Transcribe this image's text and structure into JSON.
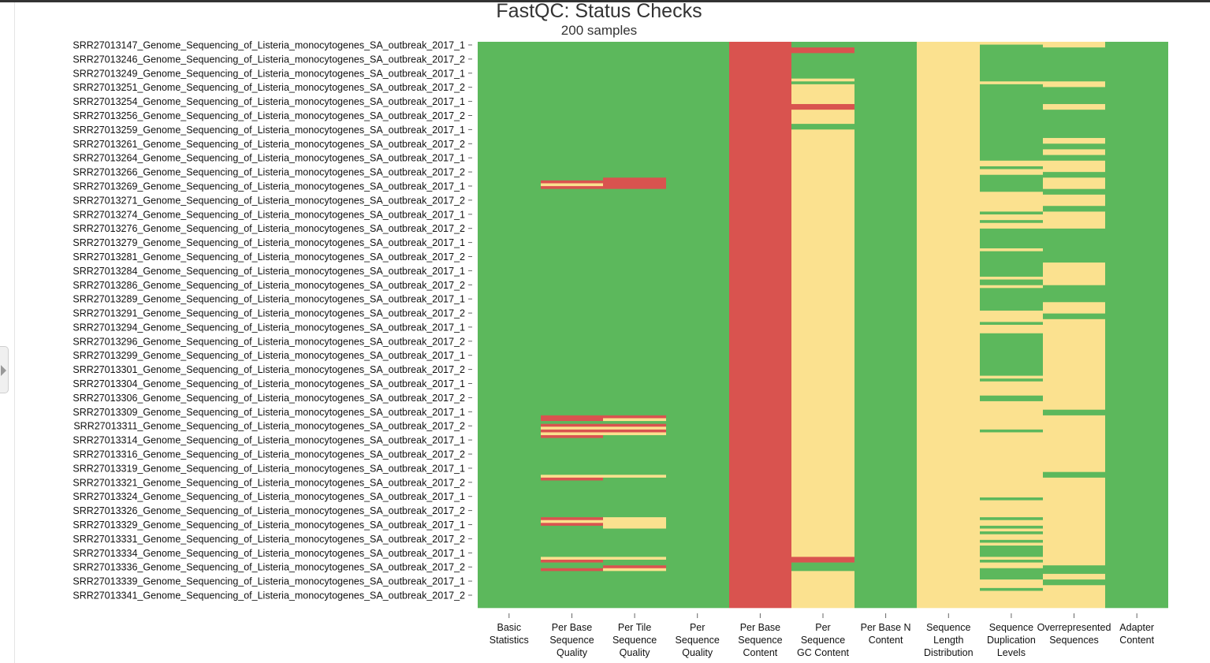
{
  "colors": {
    "pass": "#5cb85c",
    "warn": "#fbe18f",
    "fail": "#d9534f"
  },
  "chart_data": {
    "type": "heatmap",
    "title": "FastQC: Status Checks",
    "subtitle": "200 samples",
    "n_rows": 200,
    "columns": [
      "Basic Statistics",
      "Per Base Sequence Quality",
      "Per Tile Sequence Quality",
      "Per Sequence Quality Scores",
      "Per Base Sequence Content",
      "Per Sequence GC Content",
      "Per Base N Content",
      "Sequence Length Distribution",
      "Sequence Duplication Levels",
      "Overrepresented Sequences",
      "Adapter Content"
    ],
    "column_label_lines": [
      [
        "Basic",
        "Statistics"
      ],
      [
        "Per Base",
        "Sequence",
        "Quality"
      ],
      [
        "Per Tile",
        "Sequence",
        "Quality"
      ],
      [
        "Per",
        "Sequence",
        "Quality"
      ],
      [
        "Per Base",
        "Sequence",
        "Content"
      ],
      [
        "Per",
        "Sequence",
        "GC Content"
      ],
      [
        "Per Base N",
        "Content"
      ],
      [
        "Sequence",
        "Length",
        "Distribution"
      ],
      [
        "Sequence",
        "Duplication",
        "Levels"
      ],
      [
        "Overrepresented",
        "Sequences"
      ],
      [
        "Adapter",
        "Content"
      ]
    ],
    "row_labels_shown": [
      "SRR27013147_Genome_Sequencing_of_Listeria_monocytogenes_SA_outbreak_2017_1",
      "SRR27013246_Genome_Sequencing_of_Listeria_monocytogenes_SA_outbreak_2017_2",
      "SRR27013249_Genome_Sequencing_of_Listeria_monocytogenes_SA_outbreak_2017_1",
      "SRR27013251_Genome_Sequencing_of_Listeria_monocytogenes_SA_outbreak_2017_2",
      "SRR27013254_Genome_Sequencing_of_Listeria_monocytogenes_SA_outbreak_2017_1",
      "SRR27013256_Genome_Sequencing_of_Listeria_monocytogenes_SA_outbreak_2017_2",
      "SRR27013259_Genome_Sequencing_of_Listeria_monocytogenes_SA_outbreak_2017_1",
      "SRR27013261_Genome_Sequencing_of_Listeria_monocytogenes_SA_outbreak_2017_2",
      "SRR27013264_Genome_Sequencing_of_Listeria_monocytogenes_SA_outbreak_2017_1",
      "SRR27013266_Genome_Sequencing_of_Listeria_monocytogenes_SA_outbreak_2017_2",
      "SRR27013269_Genome_Sequencing_of_Listeria_monocytogenes_SA_outbreak_2017_1",
      "SRR27013271_Genome_Sequencing_of_Listeria_monocytogenes_SA_outbreak_2017_2",
      "SRR27013274_Genome_Sequencing_of_Listeria_monocytogenes_SA_outbreak_2017_1",
      "SRR27013276_Genome_Sequencing_of_Listeria_monocytogenes_SA_outbreak_2017_2",
      "SRR27013279_Genome_Sequencing_of_Listeria_monocytogenes_SA_outbreak_2017_1",
      "SRR27013281_Genome_Sequencing_of_Listeria_monocytogenes_SA_outbreak_2017_2",
      "SRR27013284_Genome_Sequencing_of_Listeria_monocytogenes_SA_outbreak_2017_1",
      "SRR27013286_Genome_Sequencing_of_Listeria_monocytogenes_SA_outbreak_2017_2",
      "SRR27013289_Genome_Sequencing_of_Listeria_monocytogenes_SA_outbreak_2017_1",
      "SRR27013291_Genome_Sequencing_of_Listeria_monocytogenes_SA_outbreak_2017_2",
      "SRR27013294_Genome_Sequencing_of_Listeria_monocytogenes_SA_outbreak_2017_1",
      "SRR27013296_Genome_Sequencing_of_Listeria_monocytogenes_SA_outbreak_2017_2",
      "SRR27013299_Genome_Sequencing_of_Listeria_monocytogenes_SA_outbreak_2017_1",
      "SRR27013301_Genome_Sequencing_of_Listeria_monocytogenes_SA_outbreak_2017_2",
      "SRR27013304_Genome_Sequencing_of_Listeria_monocytogenes_SA_outbreak_2017_1",
      "SRR27013306_Genome_Sequencing_of_Listeria_monocytogenes_SA_outbreak_2017_2",
      "SRR27013309_Genome_Sequencing_of_Listeria_monocytogenes_SA_outbreak_2017_1",
      "SRR27013311_Genome_Sequencing_of_Listeria_monocytogenes_SA_outbreak_2017_2",
      "SRR27013314_Genome_Sequencing_of_Listeria_monocytogenes_SA_outbreak_2017_1",
      "SRR27013316_Genome_Sequencing_of_Listeria_monocytogenes_SA_outbreak_2017_2",
      "SRR27013319_Genome_Sequencing_of_Listeria_monocytogenes_SA_outbreak_2017_1",
      "SRR27013321_Genome_Sequencing_of_Listeria_monocytogenes_SA_outbreak_2017_2",
      "SRR27013324_Genome_Sequencing_of_Listeria_monocytogenes_SA_outbreak_2017_1",
      "SRR27013326_Genome_Sequencing_of_Listeria_monocytogenes_SA_outbreak_2017_2",
      "SRR27013329_Genome_Sequencing_of_Listeria_monocytogenes_SA_outbreak_2017_1",
      "SRR27013331_Genome_Sequencing_of_Listeria_monocytogenes_SA_outbreak_2017_2",
      "SRR27013334_Genome_Sequencing_of_Listeria_monocytogenes_SA_outbreak_2017_1",
      "SRR27013336_Genome_Sequencing_of_Listeria_monocytogenes_SA_outbreak_2017_2",
      "SRR27013339_Genome_Sequencing_of_Listeria_monocytogenes_SA_outbreak_2017_1",
      "SRR27013341_Genome_Sequencing_of_Listeria_monocytogenes_SA_outbreak_2017_2"
    ],
    "status_levels": [
      "pass",
      "warn",
      "fail"
    ],
    "default_status": [
      "pass",
      "pass",
      "pass",
      "pass",
      "fail",
      "warn",
      "pass",
      "warn",
      "pass",
      "pass",
      "pass"
    ],
    "runs": [
      {
        "col": 1,
        "start": 49,
        "end": 49,
        "status": "fail"
      },
      {
        "col": 1,
        "start": 50,
        "end": 50,
        "status": "warn"
      },
      {
        "col": 1,
        "start": 51,
        "end": 51,
        "status": "fail"
      },
      {
        "col": 2,
        "start": 48,
        "end": 51,
        "status": "fail"
      },
      {
        "col": 1,
        "start": 132,
        "end": 133,
        "status": "fail"
      },
      {
        "col": 1,
        "start": 135,
        "end": 135,
        "status": "fail"
      },
      {
        "col": 1,
        "start": 136,
        "end": 136,
        "status": "warn"
      },
      {
        "col": 1,
        "start": 137,
        "end": 137,
        "status": "fail"
      },
      {
        "col": 1,
        "start": 138,
        "end": 138,
        "status": "warn"
      },
      {
        "col": 1,
        "start": 139,
        "end": 139,
        "status": "fail"
      },
      {
        "col": 2,
        "start": 132,
        "end": 132,
        "status": "fail"
      },
      {
        "col": 2,
        "start": 133,
        "end": 133,
        "status": "warn"
      },
      {
        "col": 2,
        "start": 135,
        "end": 135,
        "status": "fail"
      },
      {
        "col": 2,
        "start": 136,
        "end": 136,
        "status": "warn"
      },
      {
        "col": 2,
        "start": 137,
        "end": 137,
        "status": "fail"
      },
      {
        "col": 2,
        "start": 138,
        "end": 138,
        "status": "warn"
      },
      {
        "col": 1,
        "start": 153,
        "end": 153,
        "status": "warn"
      },
      {
        "col": 1,
        "start": 154,
        "end": 154,
        "status": "fail"
      },
      {
        "col": 2,
        "start": 153,
        "end": 153,
        "status": "warn"
      },
      {
        "col": 1,
        "start": 168,
        "end": 168,
        "status": "fail"
      },
      {
        "col": 1,
        "start": 169,
        "end": 169,
        "status": "warn"
      },
      {
        "col": 1,
        "start": 170,
        "end": 170,
        "status": "fail"
      },
      {
        "col": 2,
        "start": 168,
        "end": 171,
        "status": "warn"
      },
      {
        "col": 1,
        "start": 182,
        "end": 182,
        "status": "warn"
      },
      {
        "col": 1,
        "start": 183,
        "end": 183,
        "status": "fail"
      },
      {
        "col": 1,
        "start": 186,
        "end": 186,
        "status": "fail"
      },
      {
        "col": 2,
        "start": 182,
        "end": 182,
        "status": "warn"
      },
      {
        "col": 2,
        "start": 185,
        "end": 185,
        "status": "fail"
      },
      {
        "col": 2,
        "start": 186,
        "end": 186,
        "status": "warn"
      },
      {
        "col": 5,
        "start": 0,
        "end": 1,
        "status": "pass"
      },
      {
        "col": 5,
        "start": 2,
        "end": 3,
        "status": "fail"
      },
      {
        "col": 5,
        "start": 4,
        "end": 12,
        "status": "pass"
      },
      {
        "col": 5,
        "start": 13,
        "end": 13,
        "status": "warn"
      },
      {
        "col": 5,
        "start": 14,
        "end": 14,
        "status": "pass"
      },
      {
        "col": 5,
        "start": 22,
        "end": 23,
        "status": "fail"
      },
      {
        "col": 5,
        "start": 29,
        "end": 29,
        "status": "pass"
      },
      {
        "col": 5,
        "start": 30,
        "end": 30,
        "status": "pass"
      },
      {
        "col": 5,
        "start": 182,
        "end": 183,
        "status": "fail"
      },
      {
        "col": 5,
        "start": 184,
        "end": 186,
        "status": "pass"
      },
      {
        "col": 8,
        "start": 0,
        "end": 0,
        "status": "warn"
      },
      {
        "col": 8,
        "start": 14,
        "end": 14,
        "status": "warn"
      },
      {
        "col": 8,
        "start": 42,
        "end": 43,
        "status": "warn"
      },
      {
        "col": 8,
        "start": 45,
        "end": 46,
        "status": "warn"
      },
      {
        "col": 8,
        "start": 53,
        "end": 59,
        "status": "warn"
      },
      {
        "col": 8,
        "start": 61,
        "end": 62,
        "status": "warn"
      },
      {
        "col": 8,
        "start": 64,
        "end": 65,
        "status": "warn"
      },
      {
        "col": 8,
        "start": 73,
        "end": 73,
        "status": "warn"
      },
      {
        "col": 8,
        "start": 83,
        "end": 83,
        "status": "warn"
      },
      {
        "col": 8,
        "start": 86,
        "end": 86,
        "status": "warn"
      },
      {
        "col": 8,
        "start": 95,
        "end": 98,
        "status": "warn"
      },
      {
        "col": 8,
        "start": 100,
        "end": 102,
        "status": "warn"
      },
      {
        "col": 8,
        "start": 118,
        "end": 118,
        "status": "warn"
      },
      {
        "col": 8,
        "start": 120,
        "end": 124,
        "status": "warn"
      },
      {
        "col": 8,
        "start": 127,
        "end": 136,
        "status": "warn"
      },
      {
        "col": 8,
        "start": 138,
        "end": 160,
        "status": "warn"
      },
      {
        "col": 8,
        "start": 162,
        "end": 167,
        "status": "warn"
      },
      {
        "col": 8,
        "start": 169,
        "end": 170,
        "status": "warn"
      },
      {
        "col": 8,
        "start": 172,
        "end": 172,
        "status": "warn"
      },
      {
        "col": 8,
        "start": 174,
        "end": 175,
        "status": "warn"
      },
      {
        "col": 8,
        "start": 177,
        "end": 177,
        "status": "warn"
      },
      {
        "col": 8,
        "start": 182,
        "end": 182,
        "status": "warn"
      },
      {
        "col": 8,
        "start": 184,
        "end": 185,
        "status": "warn"
      },
      {
        "col": 8,
        "start": 190,
        "end": 192,
        "status": "warn"
      },
      {
        "col": 8,
        "start": 194,
        "end": 199,
        "status": "warn"
      },
      {
        "col": 9,
        "start": 0,
        "end": 1,
        "status": "warn"
      },
      {
        "col": 9,
        "start": 14,
        "end": 15,
        "status": "warn"
      },
      {
        "col": 9,
        "start": 22,
        "end": 23,
        "status": "warn"
      },
      {
        "col": 9,
        "start": 34,
        "end": 35,
        "status": "warn"
      },
      {
        "col": 9,
        "start": 38,
        "end": 39,
        "status": "warn"
      },
      {
        "col": 9,
        "start": 42,
        "end": 45,
        "status": "warn"
      },
      {
        "col": 9,
        "start": 48,
        "end": 51,
        "status": "warn"
      },
      {
        "col": 9,
        "start": 54,
        "end": 57,
        "status": "warn"
      },
      {
        "col": 9,
        "start": 60,
        "end": 65,
        "status": "warn"
      },
      {
        "col": 9,
        "start": 78,
        "end": 85,
        "status": "warn"
      },
      {
        "col": 9,
        "start": 92,
        "end": 95,
        "status": "warn"
      },
      {
        "col": 9,
        "start": 98,
        "end": 129,
        "status": "warn"
      },
      {
        "col": 9,
        "start": 132,
        "end": 151,
        "status": "warn"
      },
      {
        "col": 9,
        "start": 154,
        "end": 184,
        "status": "warn"
      },
      {
        "col": 9,
        "start": 188,
        "end": 189,
        "status": "warn"
      },
      {
        "col": 9,
        "start": 192,
        "end": 199,
        "status": "warn"
      }
    ]
  }
}
